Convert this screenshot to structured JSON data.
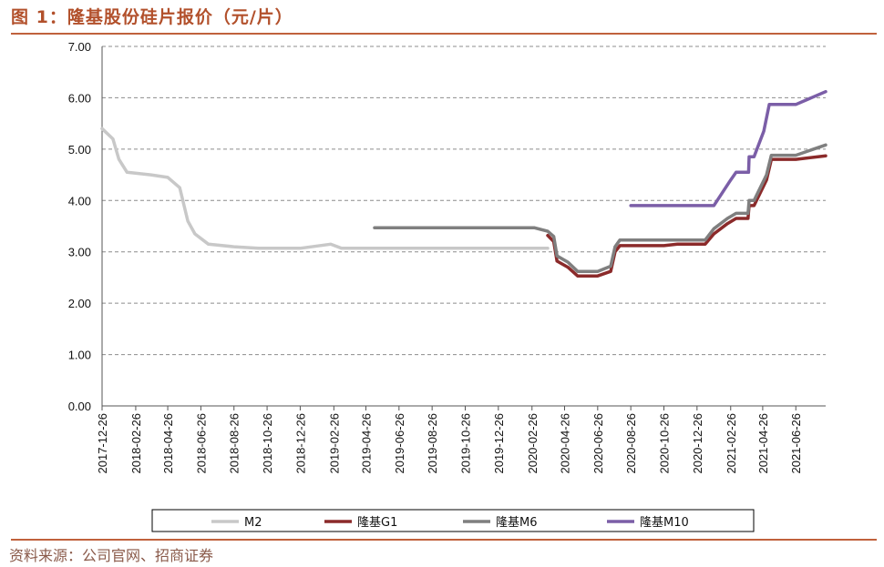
{
  "header": {
    "title": "图 1：隆基股份硅片报价（元/片）"
  },
  "footer": {
    "source": "资料来源：公司官网、招商证券"
  },
  "colors": {
    "M2": "#c8c8c8",
    "G1": "#8b2a2a",
    "M6": "#7f7f7f",
    "M10": "#7b5ea7",
    "accent": "#c0613c"
  },
  "chart_data": {
    "type": "line",
    "title": "",
    "xlabel": "",
    "ylabel": "",
    "ylim": [
      0,
      7
    ],
    "yticks": [
      "0.00",
      "1.00",
      "2.00",
      "3.00",
      "4.00",
      "5.00",
      "6.00",
      "7.00"
    ],
    "xlim": [
      "2017-12-26",
      "2021-08-20"
    ],
    "xticks": [
      "2017-12-26",
      "2018-02-26",
      "2018-04-26",
      "2018-06-26",
      "2018-08-26",
      "2018-10-26",
      "2018-12-26",
      "2019-02-26",
      "2019-04-26",
      "2019-06-26",
      "2019-08-26",
      "2019-10-26",
      "2019-12-26",
      "2020-02-26",
      "2020-04-26",
      "2020-06-26",
      "2020-08-26",
      "2020-10-26",
      "2020-12-26",
      "2021-02-26",
      "2021-04-26",
      "2021-06-26"
    ],
    "grid": "horizontal-dashed",
    "legend_position": "bottom",
    "series": [
      {
        "name": "M2",
        "color": "#c8c8c8",
        "points": [
          [
            "2017-12-26",
            5.4
          ],
          [
            "2018-01-15",
            5.2
          ],
          [
            "2018-01-26",
            4.8
          ],
          [
            "2018-02-10",
            4.55
          ],
          [
            "2018-03-26",
            4.5
          ],
          [
            "2018-04-26",
            4.45
          ],
          [
            "2018-05-18",
            4.25
          ],
          [
            "2018-06-02",
            3.6
          ],
          [
            "2018-06-15",
            3.35
          ],
          [
            "2018-07-10",
            3.15
          ],
          [
            "2018-08-26",
            3.1
          ],
          [
            "2018-10-10",
            3.07
          ],
          [
            "2018-12-26",
            3.07
          ],
          [
            "2019-02-20",
            3.15
          ],
          [
            "2019-03-12",
            3.07
          ],
          [
            "2020-03-26",
            3.07
          ]
        ]
      },
      {
        "name": "隆基G1",
        "color": "#8b2a2a",
        "points": [
          [
            "2020-03-26",
            3.32
          ],
          [
            "2020-04-06",
            3.2
          ],
          [
            "2020-04-12",
            2.82
          ],
          [
            "2020-05-02",
            2.7
          ],
          [
            "2020-05-20",
            2.53
          ],
          [
            "2020-06-26",
            2.53
          ],
          [
            "2020-07-20",
            2.62
          ],
          [
            "2020-07-28",
            3.0
          ],
          [
            "2020-08-06",
            3.12
          ],
          [
            "2020-10-26",
            3.12
          ],
          [
            "2020-11-20",
            3.15
          ],
          [
            "2021-01-10",
            3.15
          ],
          [
            "2021-01-26",
            3.35
          ],
          [
            "2021-02-20",
            3.55
          ],
          [
            "2021-03-08",
            3.65
          ],
          [
            "2021-03-30",
            3.65
          ],
          [
            "2021-04-01",
            3.9
          ],
          [
            "2021-04-10",
            3.9
          ],
          [
            "2021-05-03",
            4.4
          ],
          [
            "2021-05-12",
            4.8
          ],
          [
            "2021-06-26",
            4.8
          ],
          [
            "2021-08-20",
            4.87
          ]
        ]
      },
      {
        "name": "隆基M6",
        "color": "#7f7f7f",
        "points": [
          [
            "2019-05-12",
            3.47
          ],
          [
            "2020-03-01",
            3.47
          ],
          [
            "2020-03-26",
            3.4
          ],
          [
            "2020-04-06",
            3.3
          ],
          [
            "2020-04-12",
            2.92
          ],
          [
            "2020-05-02",
            2.8
          ],
          [
            "2020-05-20",
            2.62
          ],
          [
            "2020-06-26",
            2.62
          ],
          [
            "2020-07-20",
            2.72
          ],
          [
            "2020-07-28",
            3.1
          ],
          [
            "2020-08-06",
            3.23
          ],
          [
            "2021-01-10",
            3.23
          ],
          [
            "2021-01-26",
            3.45
          ],
          [
            "2021-02-20",
            3.65
          ],
          [
            "2021-03-08",
            3.75
          ],
          [
            "2021-03-30",
            3.75
          ],
          [
            "2021-04-01",
            4.0
          ],
          [
            "2021-04-10",
            4.0
          ],
          [
            "2021-05-03",
            4.5
          ],
          [
            "2021-05-12",
            4.88
          ],
          [
            "2021-06-26",
            4.88
          ],
          [
            "2021-08-20",
            5.08
          ]
        ]
      },
      {
        "name": "隆基M10",
        "color": "#7b5ea7",
        "points": [
          [
            "2020-08-26",
            3.9
          ],
          [
            "2021-01-26",
            3.9
          ],
          [
            "2021-02-26",
            4.4
          ],
          [
            "2021-03-08",
            4.55
          ],
          [
            "2021-03-31",
            4.55
          ],
          [
            "2021-04-01",
            4.85
          ],
          [
            "2021-04-10",
            4.85
          ],
          [
            "2021-04-28",
            5.35
          ],
          [
            "2021-05-08",
            5.87
          ],
          [
            "2021-06-26",
            5.87
          ],
          [
            "2021-08-20",
            6.12
          ]
        ]
      }
    ]
  }
}
